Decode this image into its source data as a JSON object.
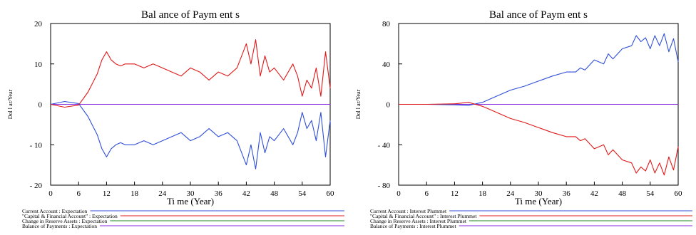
{
  "chart_data": [
    {
      "type": "line",
      "title": "Bal ance of Paym ent s",
      "xlabel": "Ti me (Year)",
      "ylabel": "Dol l ar/Year",
      "xlim": [
        0,
        60
      ],
      "ylim": [
        -20,
        20
      ],
      "xticks": [
        0,
        6,
        12,
        18,
        24,
        30,
        36,
        42,
        48,
        54,
        60
      ],
      "yticks": [
        20,
        10,
        0,
        -10,
        -20
      ],
      "ytick_labels": [
        "20",
        "10",
        "0",
        "- 10",
        "- 20"
      ],
      "grid": false,
      "legend_position": "bottom",
      "series": [
        {
          "name": "Current Account : Expectation",
          "color": "#2f4fd8",
          "x": [
            0,
            3,
            6,
            8,
            10,
            11,
            12,
            13,
            14,
            15,
            16,
            18,
            20,
            22,
            24,
            26,
            28,
            30,
            32,
            34,
            36,
            38,
            40,
            41,
            42,
            43,
            44,
            45,
            46,
            47,
            48,
            50,
            52,
            53,
            54,
            55,
            56,
            57,
            58,
            59,
            60
          ],
          "y": [
            0,
            0.7,
            0.2,
            -3,
            -7.5,
            -11,
            -13,
            -11,
            -10,
            -9.5,
            -10,
            -10,
            -9,
            -10,
            -9,
            -8,
            -7,
            -9,
            -8,
            -6,
            -8,
            -7,
            -9,
            -12,
            -15,
            -10,
            -16,
            -7,
            -12,
            -8,
            -9,
            -6,
            -10,
            -7,
            -2,
            -6,
            -4,
            -9,
            -2,
            -13,
            -4
          ]
        },
        {
          "name": "\"Capital & Financial Account\" : Expectation",
          "color": "#e01818",
          "x": [
            0,
            3,
            6,
            8,
            10,
            11,
            12,
            13,
            14,
            15,
            16,
            18,
            20,
            22,
            24,
            26,
            28,
            30,
            32,
            34,
            36,
            38,
            40,
            41,
            42,
            43,
            44,
            45,
            46,
            47,
            48,
            50,
            52,
            53,
            54,
            55,
            56,
            57,
            58,
            59,
            60
          ],
          "y": [
            0,
            -0.7,
            -0.2,
            3,
            7.5,
            11,
            13,
            11,
            10,
            9.5,
            10,
            10,
            9,
            10,
            9,
            8,
            7,
            9,
            8,
            6,
            8,
            7,
            9,
            12,
            15,
            10,
            16,
            7,
            12,
            8,
            9,
            6,
            10,
            7,
            2,
            6,
            4,
            9,
            2,
            13,
            4
          ]
        },
        {
          "name": "Change in Reserve Assets : Expectation",
          "color": "#1a8a1a",
          "x": [
            0,
            60
          ],
          "y": [
            0,
            0
          ]
        },
        {
          "name": "Balance of Payments : Expectation",
          "color": "#8a2be2",
          "x": [
            0,
            60
          ],
          "y": [
            0,
            0
          ]
        }
      ]
    },
    {
      "type": "line",
      "title": "Bal ance of Paym ent s",
      "xlabel": "Ti me (Year)",
      "ylabel": "Dol l ar/Year",
      "xlim": [
        0,
        60
      ],
      "ylim": [
        -80,
        80
      ],
      "xticks": [
        0,
        6,
        12,
        18,
        24,
        30,
        36,
        42,
        48,
        54,
        60
      ],
      "yticks": [
        80,
        40,
        0,
        -40,
        -80
      ],
      "ytick_labels": [
        "80",
        "40",
        "0",
        "- 40",
        "- 80"
      ],
      "grid": false,
      "legend_position": "bottom",
      "series": [
        {
          "name": "Current Account : Interest Plummet",
          "color": "#2f4fd8",
          "x": [
            0,
            6,
            12,
            15,
            18,
            21,
            24,
            27,
            30,
            33,
            36,
            38,
            39,
            40,
            42,
            44,
            45,
            46,
            48,
            50,
            51,
            52,
            53,
            54,
            55,
            56,
            57,
            58,
            59,
            60
          ],
          "y": [
            0,
            0,
            -0.5,
            -1,
            2,
            8,
            14,
            18,
            23,
            28,
            32,
            32,
            36,
            34,
            44,
            40,
            50,
            45,
            55,
            58,
            68,
            62,
            66,
            55,
            68,
            58,
            70,
            52,
            65,
            42
          ]
        },
        {
          "name": "\"Capital & Financial Account\" : Interest Plummet",
          "color": "#e01818",
          "x": [
            0,
            6,
            12,
            15,
            18,
            21,
            24,
            27,
            30,
            33,
            36,
            38,
            39,
            40,
            42,
            44,
            45,
            46,
            48,
            50,
            51,
            52,
            53,
            54,
            55,
            56,
            57,
            58,
            59,
            60
          ],
          "y": [
            0,
            0,
            0.5,
            2,
            -2,
            -8,
            -14,
            -18,
            -23,
            -28,
            -32,
            -32,
            -36,
            -34,
            -44,
            -40,
            -50,
            -45,
            -55,
            -58,
            -68,
            -62,
            -66,
            -55,
            -68,
            -58,
            -70,
            -52,
            -65,
            -42
          ]
        },
        {
          "name": "Change in Reserve Assets : Interest Plummet",
          "color": "#1a8a1a",
          "x": [
            0,
            60
          ],
          "y": [
            0,
            0
          ]
        },
        {
          "name": "Balance of Payments : Interest Plummet",
          "color": "#8a2be2",
          "x": [
            0,
            60
          ],
          "y": [
            0,
            0
          ]
        }
      ]
    }
  ]
}
